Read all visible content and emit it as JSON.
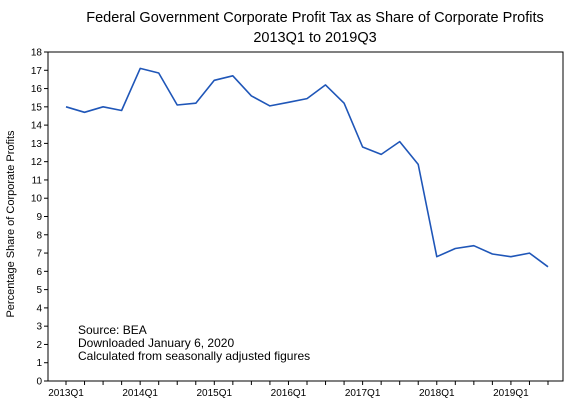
{
  "chart_data": {
    "type": "line",
    "title": "Federal Government Corporate Profit Tax as Share of Corporate Profits",
    "subtitle": "2013Q1 to 2019Q3",
    "xlabel": "",
    "ylabel": "Percentage Share of Corporate Profits",
    "ylim": [
      0,
      18
    ],
    "y_ticks": [
      "0",
      "1",
      "2",
      "3",
      "4",
      "5",
      "6",
      "7",
      "8",
      "9",
      "10",
      "11",
      "12",
      "13",
      "14",
      "15",
      "16",
      "17",
      "18"
    ],
    "x_tick_labels": [
      "2013Q1",
      "2014Q1",
      "2015Q1",
      "2016Q1",
      "2017Q1",
      "2018Q1",
      "2019Q1"
    ],
    "grid": false,
    "line_color": "#1f56b8",
    "x": [
      "2013Q1",
      "2013Q2",
      "2013Q3",
      "2013Q4",
      "2014Q1",
      "2014Q2",
      "2014Q3",
      "2014Q4",
      "2015Q1",
      "2015Q2",
      "2015Q3",
      "2015Q4",
      "2016Q1",
      "2016Q2",
      "2016Q3",
      "2016Q4",
      "2017Q1",
      "2017Q2",
      "2017Q3",
      "2017Q4",
      "2018Q1",
      "2018Q2",
      "2018Q3",
      "2018Q4",
      "2019Q1",
      "2019Q2",
      "2019Q3"
    ],
    "series": [
      {
        "values": [
          15.0,
          14.7,
          15.0,
          14.8,
          17.1,
          16.85,
          15.1,
          15.2,
          16.45,
          16.7,
          15.6,
          15.05,
          15.25,
          15.45,
          16.2,
          15.2,
          12.8,
          12.4,
          13.1,
          11.85,
          6.8,
          7.25,
          7.4,
          6.95,
          6.8,
          7.0,
          6.25
        ]
      }
    ],
    "annotations": [
      "Source:  BEA",
      "Downloaded January 6, 2020",
      "Calculated from seasonally adjusted figures"
    ]
  }
}
